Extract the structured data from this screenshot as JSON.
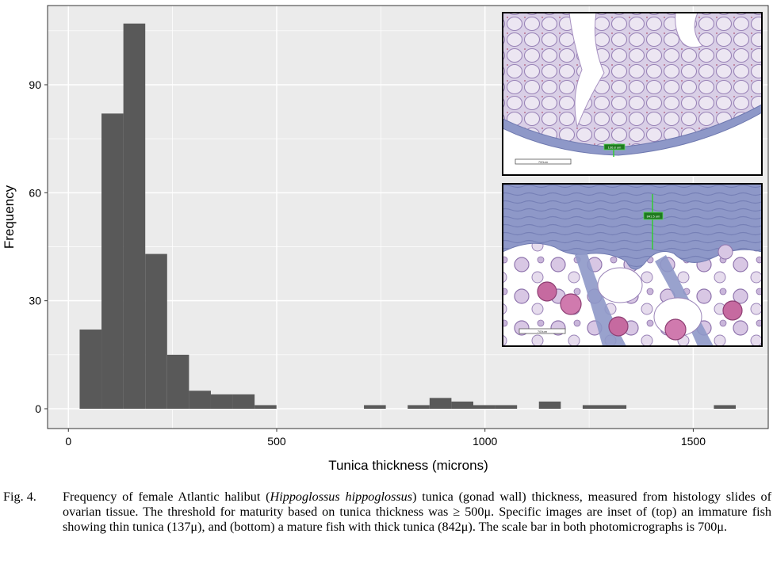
{
  "chart_data": {
    "type": "bar",
    "title": "",
    "xlabel": "Tunica thickness (microns)",
    "ylabel": "Frequency",
    "xlim": [
      -50,
      1680
    ],
    "ylim": [
      -5.5,
      112
    ],
    "x_ticks": [
      0,
      500,
      1000,
      1500
    ],
    "x_tick_labels": [
      "0",
      "500",
      "1000",
      "1500"
    ],
    "y_ticks": [
      0,
      30,
      60,
      90
    ],
    "y_tick_labels": [
      "0",
      "30",
      "60",
      "90"
    ],
    "x_minor_gridlines": [
      250,
      750,
      1250
    ],
    "y_minor_gridlines": [
      15,
      45,
      75,
      105
    ],
    "grid": true,
    "bin_width": 52.5,
    "bin_start": 27,
    "values": [
      22,
      82,
      107,
      43,
      15,
      5,
      4,
      4,
      1,
      0,
      0,
      0,
      0,
      1,
      0,
      1,
      3,
      2,
      1,
      1,
      0,
      2,
      0,
      1,
      1,
      0,
      0,
      0,
      0,
      1
    ],
    "bar_color": "#595959",
    "panel_color": "#ebebeb",
    "grid_color": "#ffffff"
  },
  "insets": {
    "top": {
      "measure_label": "136.8 um",
      "scale_label": "700um"
    },
    "bottom": {
      "measure_label": "841.5 um",
      "scale_label": "700um"
    }
  },
  "caption": {
    "figure_number": "Fig. 4.",
    "text_before_species": "Frequency of female Atlantic halibut (",
    "species": "Hippoglossus hippoglossus",
    "text_after_species": ") tunica (gonad wall) thickness, measured from histology slides of ovarian tissue. The threshold for maturity based on tunica thickness was ≥ 500μ. Specific images are inset of (top) an immature fish showing thin tunica (137μ), and (bottom) a mature fish with thick tunica (842μ). The scale bar in both photomicrographs is 700μ."
  }
}
